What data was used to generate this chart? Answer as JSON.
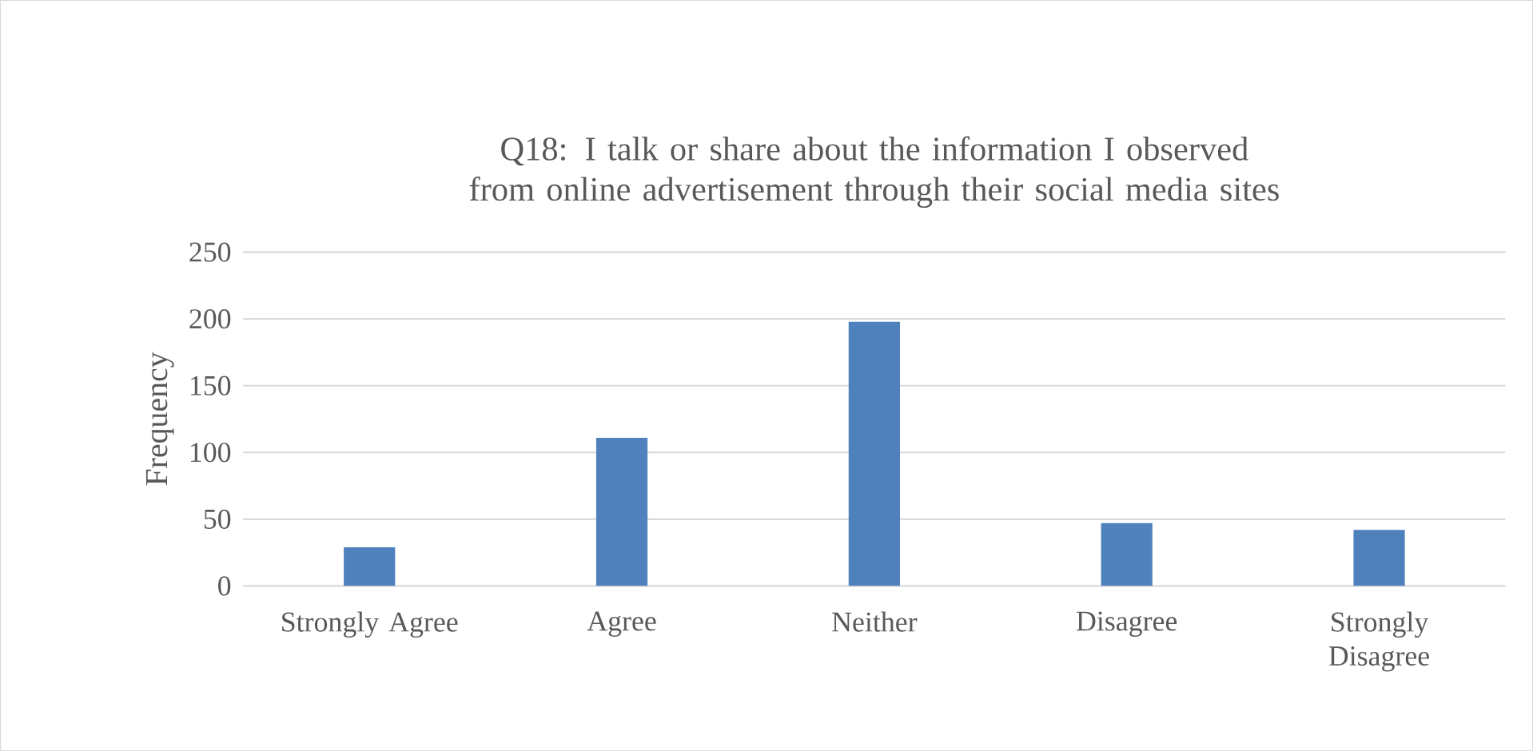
{
  "chart_data": {
    "type": "bar",
    "title": "Q18: I talk or share about the information I observed from online advertisement through their social media sites",
    "ylabel": "Frequency",
    "categories": [
      "Strongly Agree",
      "Agree",
      "Neither",
      "Disagree",
      "Strongly Disagree"
    ],
    "values": [
      29,
      111,
      198,
      47,
      42
    ],
    "color": "#4f81bd",
    "ylim": [
      0,
      250
    ],
    "yticks": [
      0,
      50,
      100,
      150,
      200,
      250
    ],
    "grid": "y"
  }
}
